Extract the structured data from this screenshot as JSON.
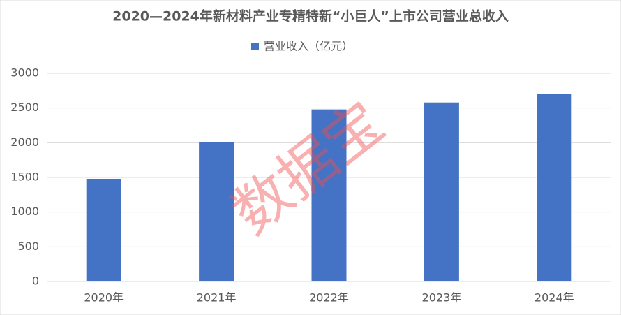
{
  "chart_data": {
    "type": "bar",
    "title": "2020—2024年新材料产业专精特新“小巨人”上市公司营业总收入",
    "categories": [
      "2020年",
      "2021年",
      "2022年",
      "2023年",
      "2024年"
    ],
    "series": [
      {
        "name": "营业收入（亿元）",
        "color": "#4472c4",
        "values": [
          1480,
          2010,
          2480,
          2580,
          2700
        ]
      }
    ],
    "ylim": [
      0,
      3000
    ],
    "yticks": [
      0,
      500,
      1000,
      1500,
      2000,
      2500,
      3000
    ],
    "grid": true,
    "legend": "top",
    "watermark": "数据宝"
  }
}
